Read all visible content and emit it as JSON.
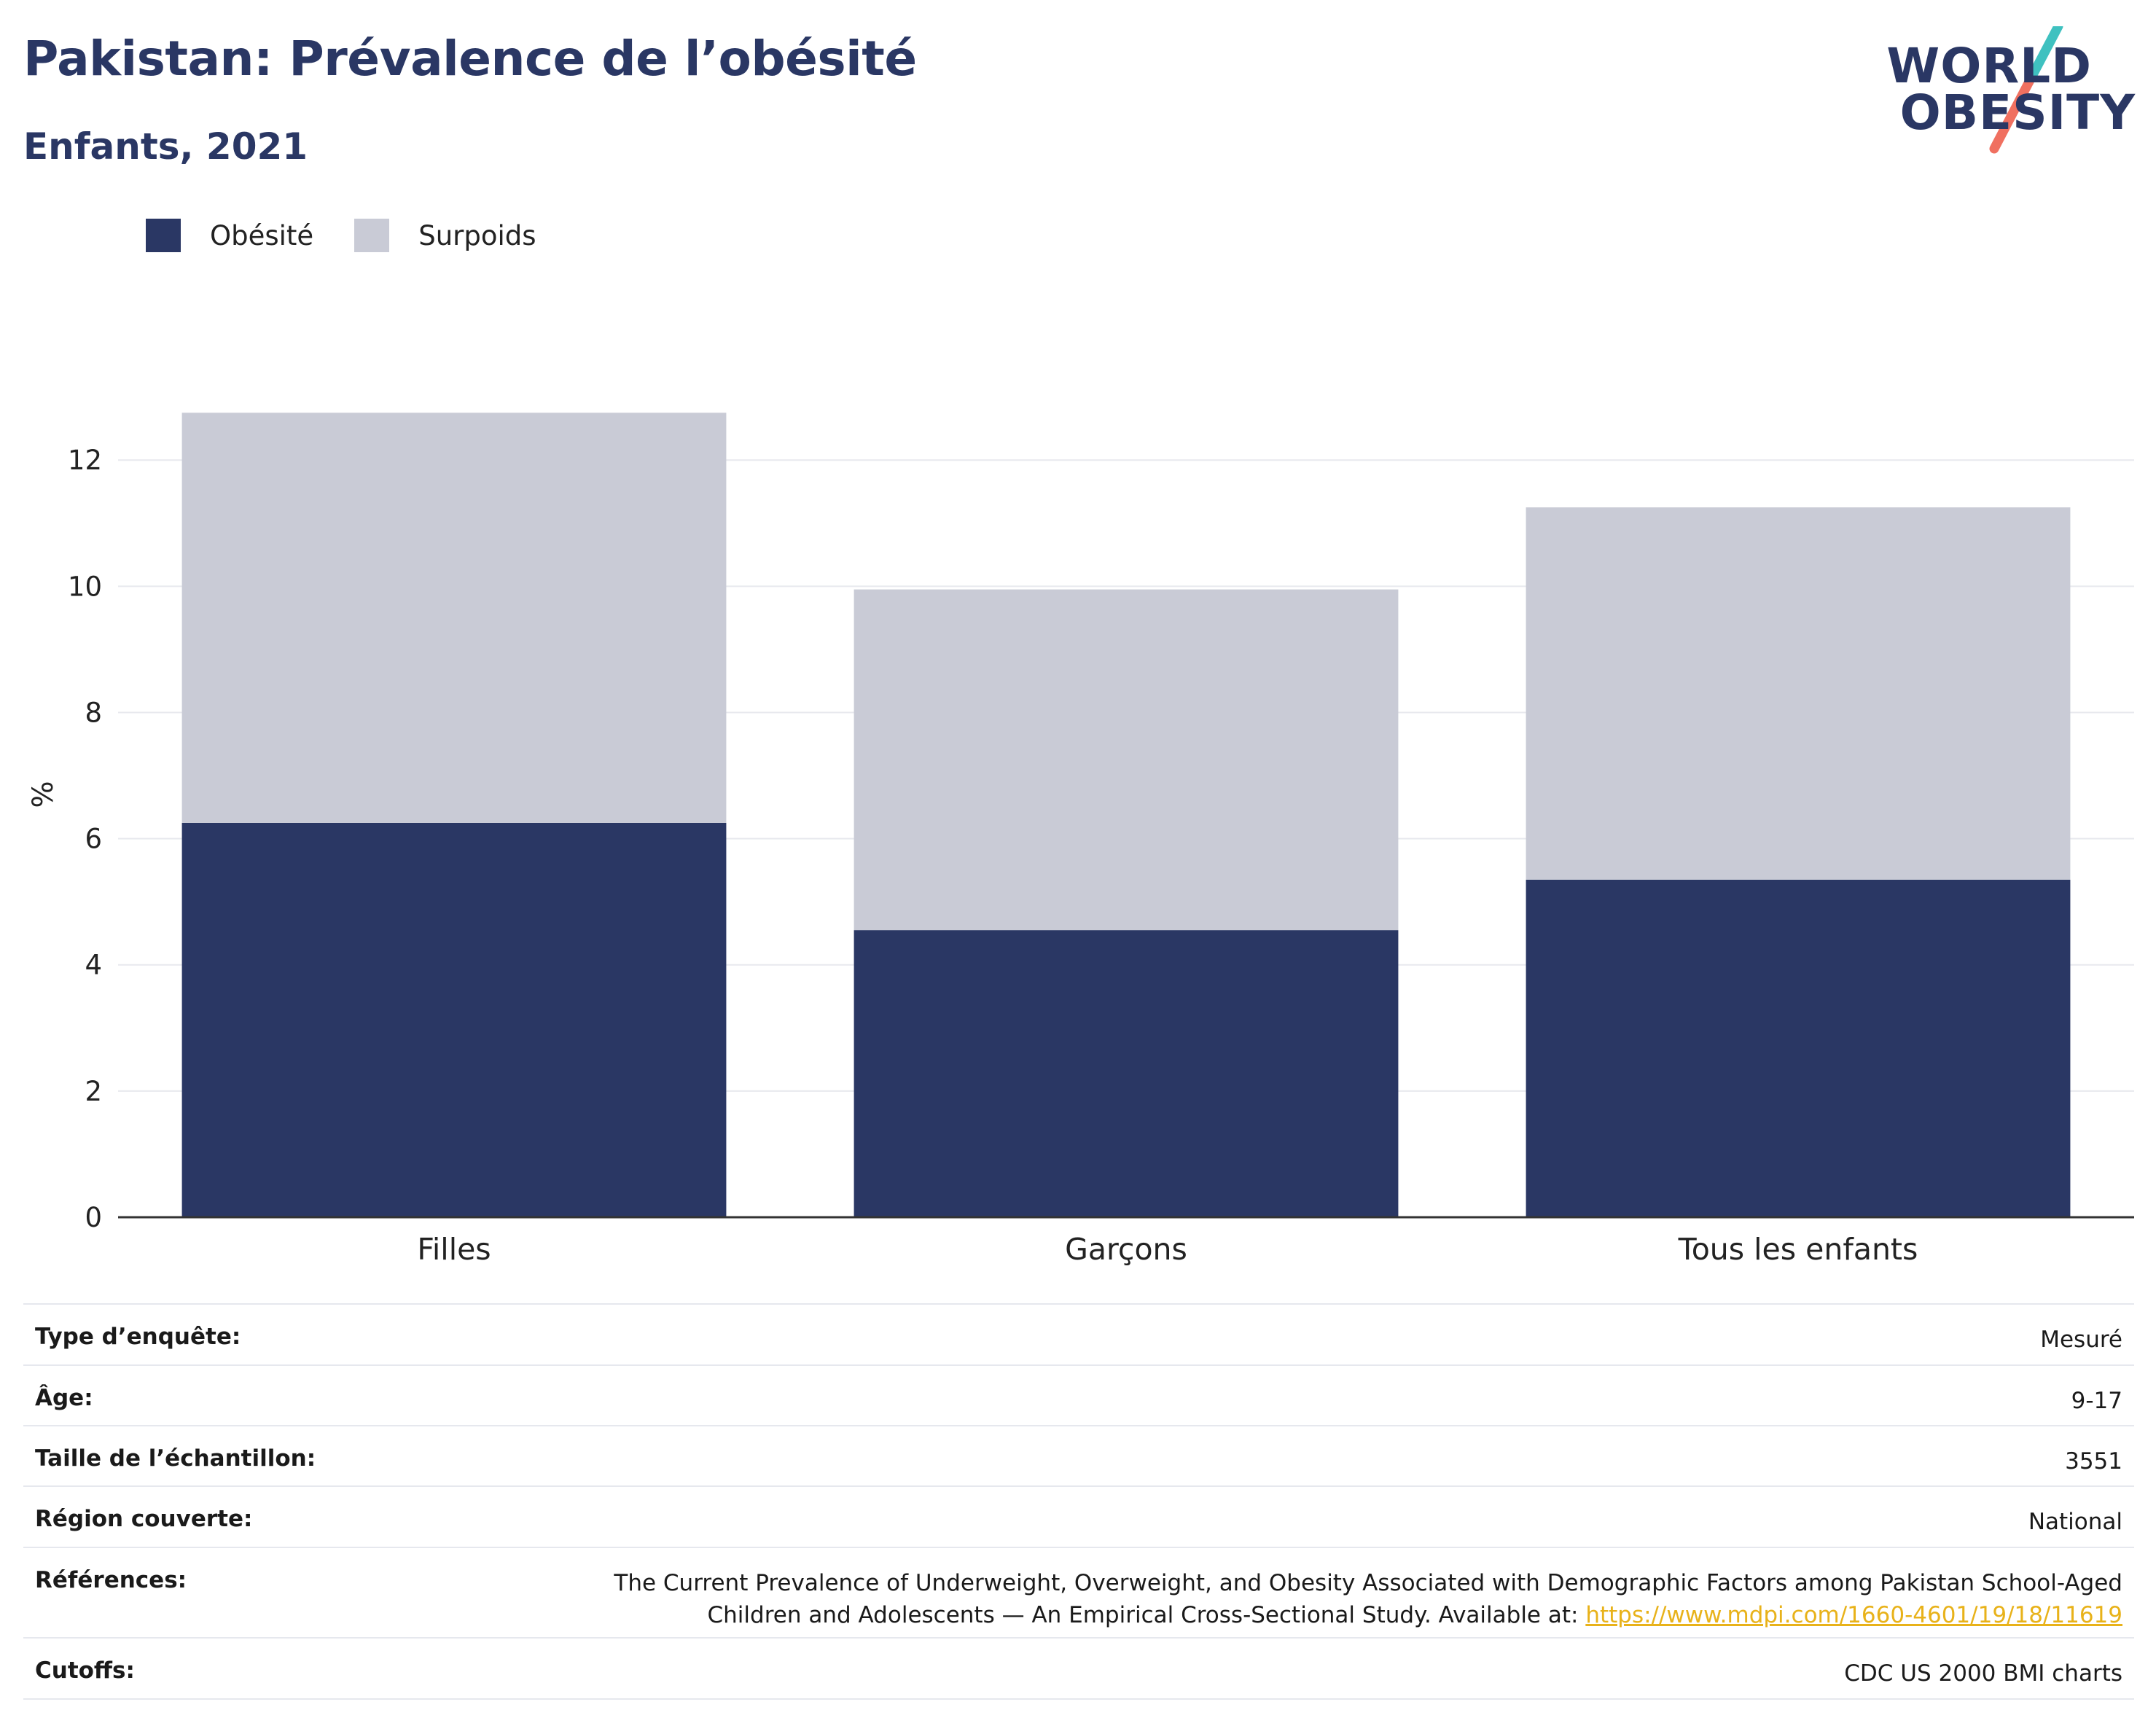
{
  "header": {
    "title": "Pakistan: Prévalence de l’obésité",
    "subtitle": "Enfants, 2021"
  },
  "logo": {
    "line1": "WORLD",
    "line2": "OBESITY",
    "colors": {
      "text": "#2a3764",
      "slash_top": "#3fc1c0",
      "slash_bottom": "#f07060"
    }
  },
  "legend": [
    {
      "label": "Obésité",
      "color": "#2a3764"
    },
    {
      "label": "Surpoids",
      "color": "#c9cbd6"
    }
  ],
  "chart_data": {
    "type": "bar",
    "stacked": true,
    "categories": [
      "Filles",
      "Garçons",
      "Tous les enfants"
    ],
    "series": [
      {
        "name": "Obésité",
        "values": [
          6.25,
          4.55,
          5.35
        ],
        "color": "#2a3764"
      },
      {
        "name": "Surpoids",
        "values": [
          6.5,
          5.4,
          5.9
        ],
        "color": "#c9cbd6"
      }
    ],
    "ylabel": "%",
    "yticks": [
      0,
      2,
      4,
      6,
      8,
      10,
      12
    ],
    "ylim": [
      0,
      13.4
    ],
    "grid": true
  },
  "info": {
    "rows": [
      {
        "label": "Type d’enquête:",
        "value": "Mesuré"
      },
      {
        "label": "Âge:",
        "value": "9-17"
      },
      {
        "label": "Taille de l’échantillon:",
        "value": "3551"
      },
      {
        "label": "Région couverte:",
        "value": "National"
      }
    ],
    "references": {
      "label": "Références:",
      "line1": "The Current Prevalence of Underweight, Overweight, and Obesity Associated with Demographic Factors among Pakistan School-Aged",
      "line2": "Children and Adolescents — An Empirical Cross-Sectional Study. Available at: ",
      "link": "https://www.mdpi.com/1660-4601/19/18/11619"
    },
    "cutoffs": {
      "label": "Cutoffs:",
      "value": "CDC US 2000 BMI charts"
    }
  }
}
